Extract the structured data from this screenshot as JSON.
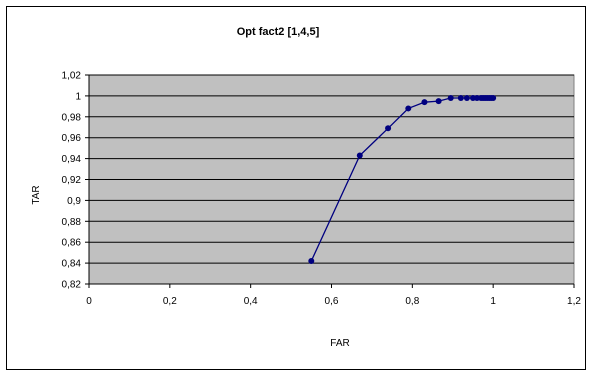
{
  "chart_data": {
    "type": "line",
    "title": "Opt fact2 [1,4,5]",
    "xlabel": "FAR",
    "ylabel": "TAR",
    "xlim": [
      0,
      1.2
    ],
    "ylim": [
      0.82,
      1.02
    ],
    "x_ticks": [
      "0",
      "0,2",
      "0,4",
      "0,6",
      "0,8",
      "1",
      "1,2"
    ],
    "y_ticks": [
      "0,82",
      "0,84",
      "0,86",
      "0,88",
      "0,9",
      "0,92",
      "0,94",
      "0,96",
      "0,98",
      "1",
      "1,02"
    ],
    "grid": "horizontal",
    "legend": "none",
    "series": [
      {
        "x": [
          0.55,
          0.67,
          0.74,
          0.79,
          0.83,
          0.865,
          0.895,
          0.92,
          0.935,
          0.95,
          0.96,
          0.97,
          0.975,
          0.98,
          0.985,
          0.99,
          0.995,
          1.0
        ],
        "y": [
          0.842,
          0.943,
          0.969,
          0.988,
          0.994,
          0.995,
          0.998,
          0.998,
          0.998,
          0.998,
          0.998,
          0.998,
          0.998,
          0.998,
          0.998,
          0.998,
          0.998,
          0.998
        ]
      }
    ],
    "colors": {
      "plot_background": "#c0c0c0",
      "series": "#000080",
      "gridline": "#000000"
    }
  }
}
